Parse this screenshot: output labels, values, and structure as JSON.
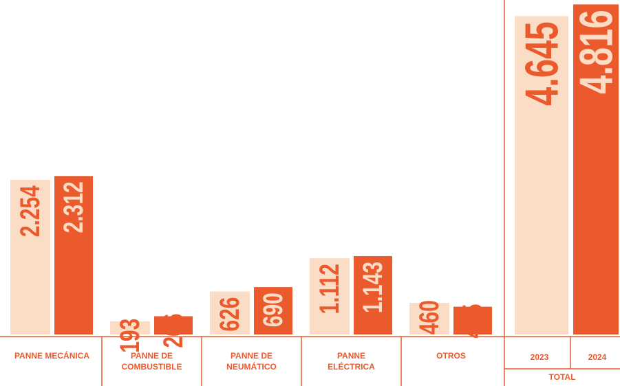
{
  "chart_data": {
    "type": "bar",
    "categories": [
      "PANNE MECÁNICA",
      "PANNE DE COMBUSTIBLE",
      "PANNE DE NEUMÁTICO",
      "PANNE ELÉCTRICA",
      "OTROS"
    ],
    "series": [
      {
        "name": "2023",
        "color": "#fbdcc4",
        "values": [
          2254,
          193,
          626,
          1112,
          460
        ],
        "value_labels": [
          "2.254",
          "193",
          "626",
          "1.112",
          "460"
        ]
      },
      {
        "name": "2024",
        "color": "#eb5a2d",
        "values": [
          2312,
          266,
          690,
          1143,
          405
        ],
        "value_labels": [
          "2.312",
          "266",
          "690",
          "1.143",
          "405"
        ]
      }
    ],
    "total": {
      "label": "TOTAL",
      "values": [
        4645,
        4816
      ],
      "value_labels": [
        "4.645",
        "4.816"
      ]
    },
    "ylim": [
      0,
      4830
    ]
  }
}
